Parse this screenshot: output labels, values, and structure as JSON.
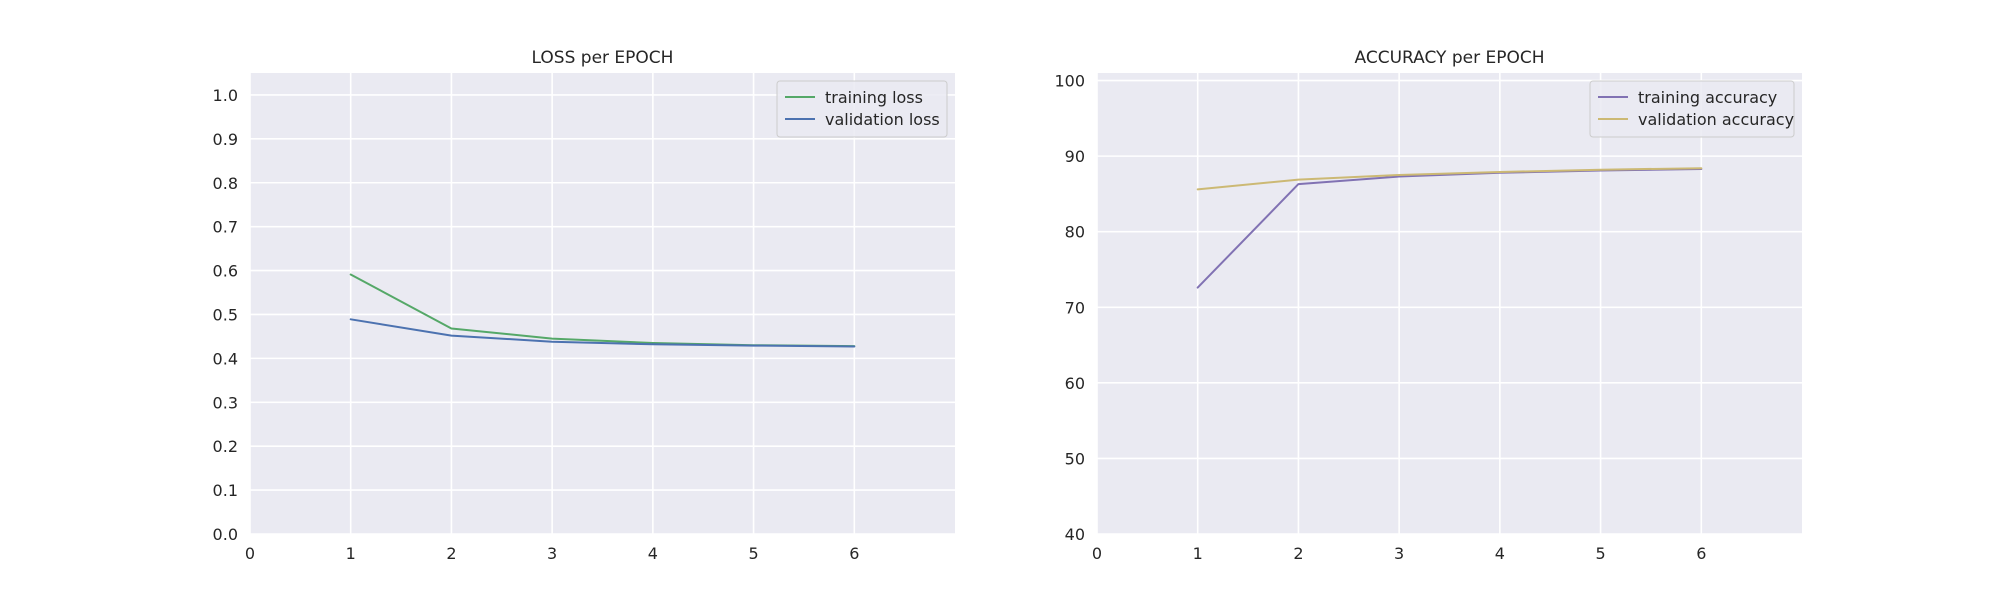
{
  "chart_data": [
    {
      "type": "line",
      "title": "LOSS per EPOCH",
      "xlabel": "",
      "ylabel": "",
      "xlim": [
        0,
        7
      ],
      "ylim": [
        0.0,
        1.05
      ],
      "x_ticks": [
        0,
        1,
        2,
        3,
        4,
        5,
        6
      ],
      "y_ticks": [
        0.0,
        0.1,
        0.2,
        0.3,
        0.4,
        0.5,
        0.6,
        0.7,
        0.8,
        0.9,
        1.0
      ],
      "y_tick_labels": [
        "0.0",
        "0.1",
        "0.2",
        "0.3",
        "0.4",
        "0.5",
        "0.6",
        "0.7",
        "0.8",
        "0.9",
        "1.0"
      ],
      "grid": true,
      "legend_position": "top-right",
      "x": [
        1,
        2,
        3,
        4,
        5,
        6
      ],
      "series": [
        {
          "name": "training loss",
          "color": "#55a868",
          "values": [
            0.591,
            0.468,
            0.445,
            0.435,
            0.43,
            0.428
          ]
        },
        {
          "name": "validation loss",
          "color": "#4c72b0",
          "values": [
            0.489,
            0.452,
            0.438,
            0.432,
            0.429,
            0.427
          ]
        }
      ]
    },
    {
      "type": "line",
      "title": "ACCURACY per EPOCH",
      "xlabel": "",
      "ylabel": "",
      "xlim": [
        0,
        7
      ],
      "ylim": [
        40,
        101
      ],
      "x_ticks": [
        0,
        1,
        2,
        3,
        4,
        5,
        6
      ],
      "y_ticks": [
        40,
        50,
        60,
        70,
        80,
        90,
        100
      ],
      "y_tick_labels": [
        "40",
        "50",
        "60",
        "70",
        "80",
        "90",
        "100"
      ],
      "grid": true,
      "legend_position": "top-right",
      "x": [
        1,
        2,
        3,
        4,
        5,
        6
      ],
      "series": [
        {
          "name": "training accuracy",
          "color": "#8172b3",
          "values": [
            72.6,
            86.3,
            87.3,
            87.8,
            88.1,
            88.3
          ]
        },
        {
          "name": "validation accuracy",
          "color": "#ccb974",
          "values": [
            85.6,
            86.9,
            87.5,
            87.9,
            88.2,
            88.4
          ]
        }
      ]
    }
  ]
}
